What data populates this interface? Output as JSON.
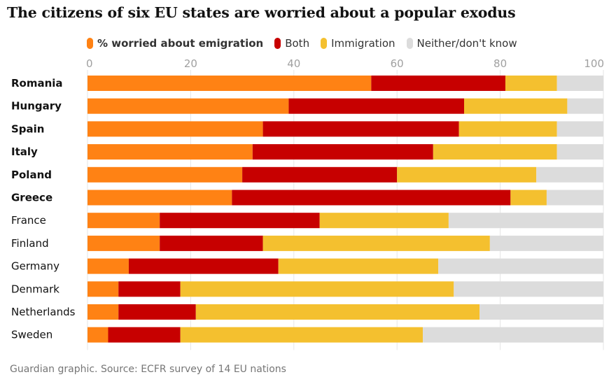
{
  "title": "The citizens of six EU states are worried about a popular exodus",
  "footer": "Guardian graphic. Source: ECFR survey of 14 EU nations",
  "colors": {
    "emigration": "#FF8214",
    "both": "#C70000",
    "immigration": "#F4C02F",
    "neither": "#DCDCDC",
    "tick": "#A0A0A0",
    "label": "#121212"
  },
  "legend": [
    {
      "key": "emigration",
      "label": "% worried about emigration"
    },
    {
      "key": "both",
      "label": "Both"
    },
    {
      "key": "immigration",
      "label": "Immigration"
    },
    {
      "key": "neither",
      "label": "Neither/don't know"
    }
  ],
  "chart_data": {
    "type": "bar",
    "orientation": "horizontal",
    "stacked": true,
    "title": "The citizens of six EU states are worried about a popular exodus",
    "xlim": [
      0,
      100
    ],
    "ticks": [
      0,
      20,
      40,
      60,
      80,
      100
    ],
    "grid": true,
    "legend_position": "top",
    "bold_categories": [
      "Romania",
      "Hungary",
      "Spain",
      "Italy",
      "Poland",
      "Greece"
    ],
    "categories": [
      "Romania",
      "Hungary",
      "Spain",
      "Italy",
      "Poland",
      "Greece",
      "France",
      "Finland",
      "Germany",
      "Denmark",
      "Netherlands",
      "Sweden"
    ],
    "series": [
      {
        "name": "% worried about emigration",
        "key": "emigration",
        "values": [
          55,
          39,
          34,
          32,
          30,
          28,
          14,
          14,
          8,
          6,
          6,
          4
        ]
      },
      {
        "name": "Both",
        "key": "both",
        "values": [
          26,
          34,
          38,
          35,
          30,
          54,
          31,
          20,
          29,
          12,
          15,
          14
        ]
      },
      {
        "name": "Immigration",
        "key": "immigration",
        "values": [
          10,
          20,
          19,
          24,
          27,
          7,
          25,
          44,
          31,
          53,
          55,
          47
        ]
      },
      {
        "name": "Neither/don't know",
        "key": "neither",
        "values": [
          9,
          7,
          9,
          9,
          13,
          11,
          30,
          22,
          32,
          29,
          24,
          35
        ]
      }
    ]
  }
}
